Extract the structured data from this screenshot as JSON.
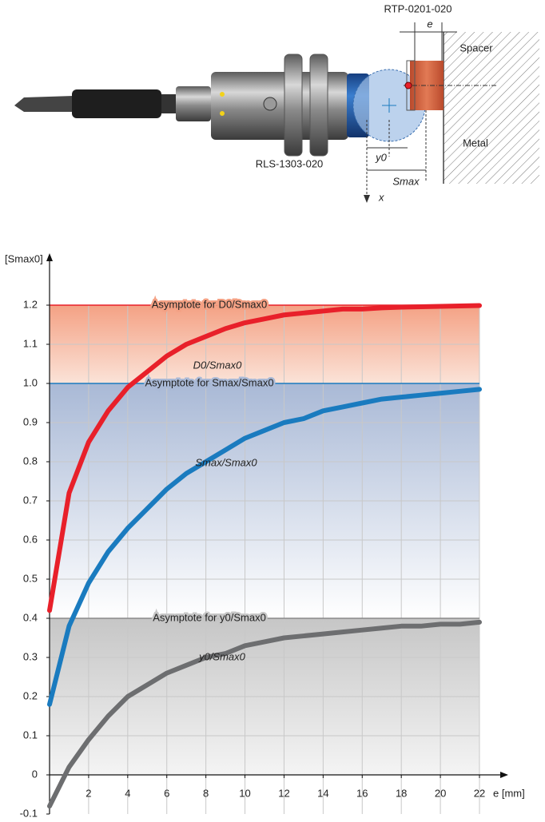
{
  "diagram": {
    "labels": {
      "holder": "RTP-0201-020",
      "e": "e",
      "spacer": "Spacer",
      "metal": "Metal",
      "sensor": "RLS-1303-020",
      "y0": "y0",
      "smax": "Smax",
      "x": "x"
    }
  },
  "chart_data": {
    "type": "line",
    "y_label": "[Smax0]",
    "x_label": "e [mm]",
    "x": [
      0,
      1,
      2,
      3,
      4,
      5,
      6,
      7,
      8,
      9,
      10,
      11,
      12,
      13,
      14,
      15,
      16,
      17,
      18,
      19,
      20,
      21,
      22
    ],
    "series": [
      {
        "name": "D0/Smax0",
        "color": "#e8202a",
        "values": [
          0.42,
          0.72,
          0.85,
          0.93,
          0.99,
          1.03,
          1.07,
          1.1,
          1.12,
          1.14,
          1.155,
          1.165,
          1.175,
          1.18,
          1.185,
          1.19,
          1.19,
          1.193,
          1.195,
          1.196,
          1.197,
          1.198,
          1.199
        ]
      },
      {
        "name": "Smax/Smax0",
        "color": "#1a7bbf",
        "values": [
          0.18,
          0.38,
          0.49,
          0.57,
          0.63,
          0.68,
          0.73,
          0.77,
          0.8,
          0.83,
          0.86,
          0.88,
          0.9,
          0.91,
          0.93,
          0.94,
          0.95,
          0.96,
          0.965,
          0.97,
          0.975,
          0.98,
          0.985
        ]
      },
      {
        "name": "y0/Smax0",
        "color": "#6d6e70",
        "values": [
          -0.08,
          0.02,
          0.09,
          0.15,
          0.2,
          0.23,
          0.26,
          0.28,
          0.3,
          0.31,
          0.33,
          0.34,
          0.35,
          0.355,
          0.36,
          0.365,
          0.37,
          0.375,
          0.38,
          0.38,
          0.385,
          0.385,
          0.39
        ]
      }
    ],
    "asymptotes": [
      {
        "label": "Asymptote for D0/Smax0",
        "value": 1.2,
        "color": "#e8202a",
        "band": [
          "#f4a184",
          "#fbe3d8"
        ]
      },
      {
        "label": "Asymptote for Smax/Smax0",
        "value": 1.0,
        "color": "#1a7bbf",
        "band": [
          "#a9b9d6",
          "#ffffff"
        ]
      },
      {
        "label": "Asymptote for y0/Smax0",
        "value": 0.4,
        "color": "#8a8a8a",
        "band": [
          "#c6c6c6",
          "#f4f4f4"
        ]
      }
    ],
    "xlim": [
      0,
      22
    ],
    "ylim": [
      -0.1,
      1.3
    ],
    "xticks": [
      2,
      4,
      6,
      8,
      10,
      12,
      14,
      16,
      18,
      20,
      22
    ],
    "yticks": [
      -0.1,
      0,
      0.1,
      0.2,
      0.3,
      0.4,
      0.5,
      0.6,
      0.7,
      0.8,
      0.9,
      {
        "value": 1,
        "label": "1.0"
      },
      1.1,
      1.2
    ],
    "grid": true
  }
}
